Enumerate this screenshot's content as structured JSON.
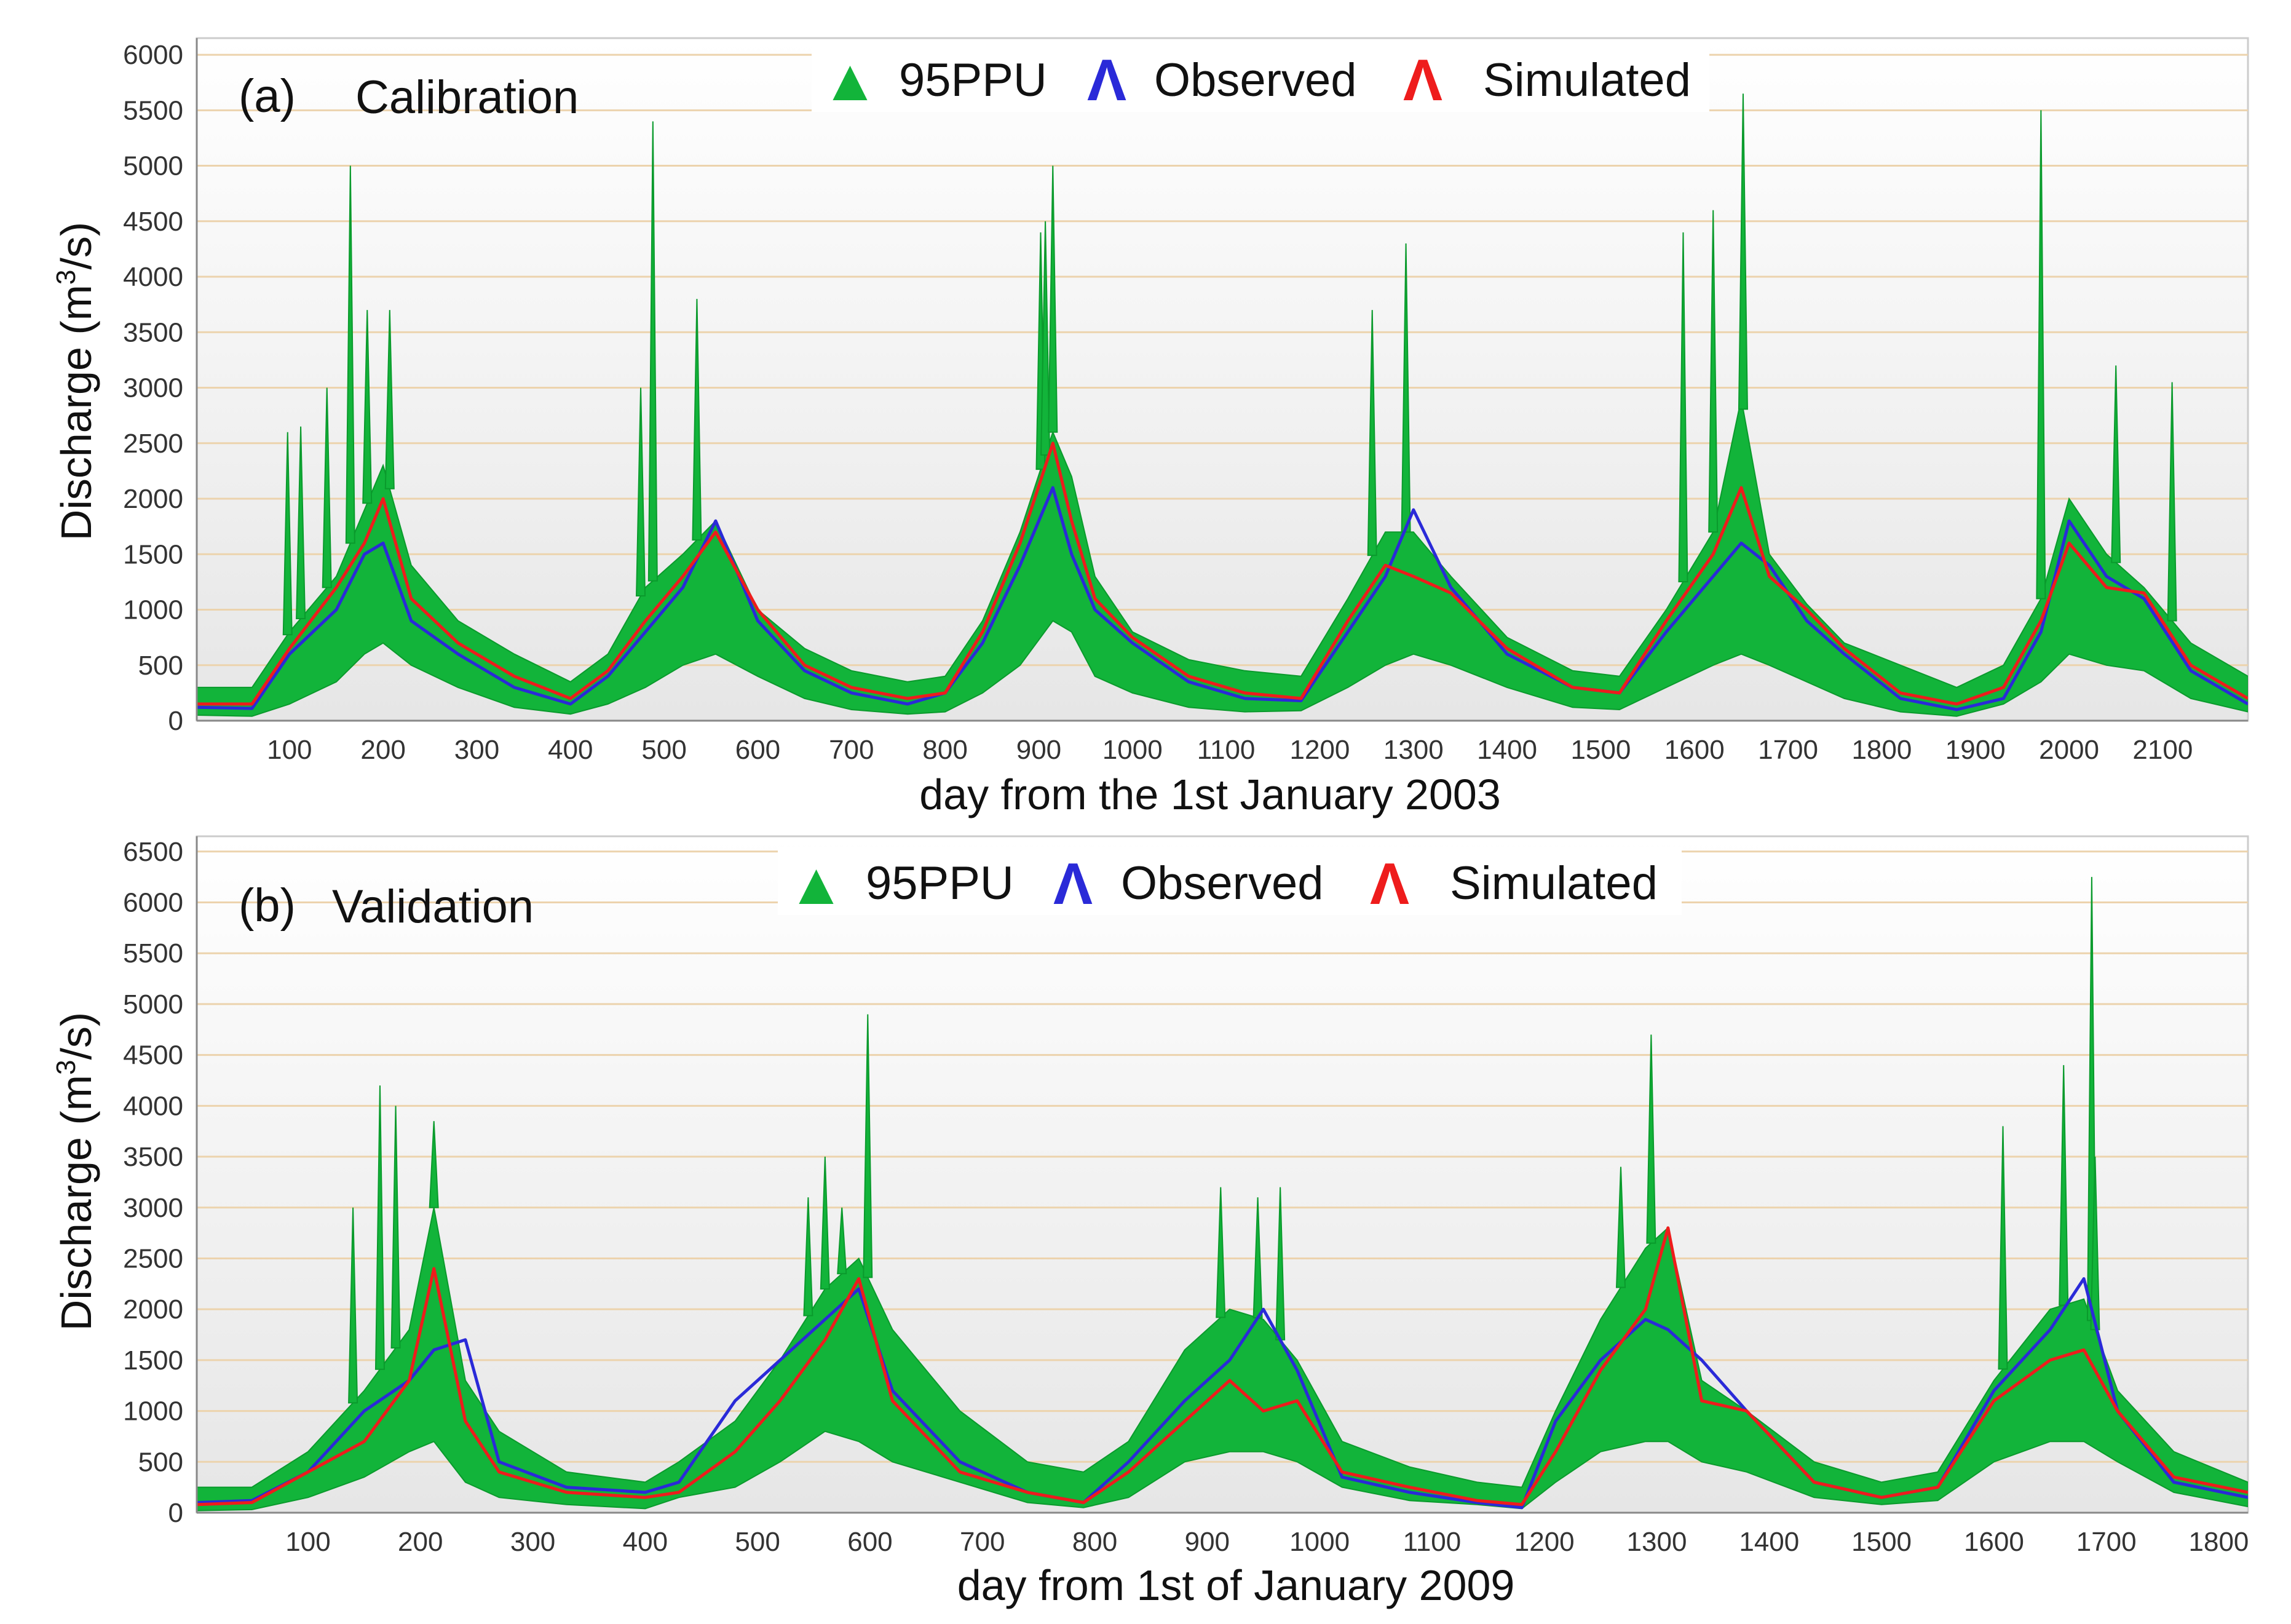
{
  "colors": {
    "ppu_fill": "#12b43a",
    "ppu_edge": "#0a9a2c",
    "observed": "#2a2ad8",
    "simulated": "#ee1c1c",
    "grid": "#ecd3ad",
    "plot_bg_top": "#ffffff",
    "plot_bg_bottom": "#e6e6e6",
    "axis": "#888888"
  },
  "legend_glyphs": {
    "filled": "▲",
    "line": "Λ"
  },
  "chart_data": [
    {
      "id": "calibration",
      "type": "area",
      "panel_label": "(a)",
      "title": "Calibration",
      "xlabel": "day from the 1st January 2003",
      "ylabel_main": "Discharge (m",
      "ylabel_sup": "3",
      "ylabel_end": "/s)",
      "xlim": [
        1,
        2191
      ],
      "ylim": [
        0,
        6150
      ],
      "xticks": [
        100,
        200,
        300,
        400,
        500,
        600,
        700,
        800,
        900,
        1000,
        1100,
        1200,
        1300,
        1400,
        1500,
        1600,
        1700,
        1800,
        1900,
        2000,
        2100
      ],
      "yticks": [
        0,
        500,
        1000,
        1500,
        2000,
        2500,
        3000,
        3500,
        4000,
        4500,
        5000,
        5500,
        6000
      ],
      "ytick_labels": [
        "0",
        "500",
        "1000",
        "1500",
        "2000",
        "2500",
        "3000",
        "3500",
        "4000",
        "4500",
        "5000",
        "5500",
        "6000"
      ],
      "legend": [
        "95PPU",
        "Observed",
        "Simulated"
      ],
      "series": [
        {
          "name": "95PPU upper",
          "x": [
            1,
            60,
            100,
            150,
            180,
            200,
            230,
            280,
            340,
            400,
            440,
            480,
            520,
            555,
            600,
            650,
            700,
            760,
            800,
            840,
            880,
            915,
            935,
            960,
            1000,
            1060,
            1120,
            1180,
            1230,
            1270,
            1300,
            1340,
            1400,
            1470,
            1520,
            1570,
            1620,
            1650,
            1680,
            1720,
            1760,
            1820,
            1880,
            1930,
            1970,
            2000,
            2040,
            2080,
            2130,
            2191
          ],
          "values": [
            300,
            300,
            800,
            1300,
            1900,
            2300,
            1400,
            900,
            600,
            350,
            600,
            1200,
            1500,
            1800,
            1000,
            650,
            450,
            350,
            400,
            900,
            1700,
            2600,
            2200,
            1300,
            800,
            550,
            450,
            400,
            1100,
            1700,
            1700,
            1300,
            750,
            450,
            400,
            1000,
            1700,
            2900,
            1500,
            1050,
            700,
            500,
            300,
            500,
            1100,
            2000,
            1500,
            1200,
            700,
            400
          ]
        },
        {
          "name": "95PPU lower",
          "x": [
            1,
            60,
            100,
            150,
            180,
            200,
            230,
            280,
            340,
            400,
            440,
            480,
            520,
            555,
            600,
            650,
            700,
            760,
            800,
            840,
            880,
            915,
            935,
            960,
            1000,
            1060,
            1120,
            1180,
            1230,
            1270,
            1300,
            1340,
            1400,
            1470,
            1520,
            1570,
            1620,
            1650,
            1680,
            1720,
            1760,
            1820,
            1880,
            1930,
            1970,
            2000,
            2040,
            2080,
            2130,
            2191
          ],
          "values": [
            50,
            40,
            150,
            350,
            600,
            700,
            500,
            300,
            120,
            60,
            150,
            300,
            500,
            600,
            400,
            200,
            100,
            60,
            80,
            250,
            500,
            900,
            800,
            400,
            250,
            120,
            80,
            90,
            300,
            500,
            600,
            500,
            300,
            120,
            100,
            300,
            500,
            600,
            500,
            350,
            200,
            80,
            40,
            150,
            350,
            600,
            500,
            450,
            200,
            80
          ]
        },
        {
          "name": "Observed",
          "x": [
            1,
            60,
            100,
            150,
            180,
            200,
            230,
            280,
            340,
            400,
            440,
            480,
            520,
            555,
            600,
            650,
            700,
            760,
            800,
            840,
            880,
            915,
            935,
            960,
            1000,
            1060,
            1120,
            1180,
            1230,
            1270,
            1300,
            1340,
            1400,
            1470,
            1520,
            1570,
            1620,
            1650,
            1680,
            1720,
            1760,
            1820,
            1880,
            1930,
            1970,
            2000,
            2040,
            2080,
            2130,
            2191
          ],
          "values": [
            120,
            110,
            600,
            1000,
            1500,
            1600,
            900,
            600,
            300,
            150,
            400,
            800,
            1200,
            1800,
            900,
            450,
            250,
            150,
            250,
            700,
            1400,
            2100,
            1500,
            1000,
            700,
            350,
            200,
            180,
            800,
            1300,
            1900,
            1200,
            600,
            300,
            250,
            800,
            1300,
            1600,
            1400,
            900,
            600,
            200,
            100,
            200,
            800,
            1800,
            1300,
            1100,
            450,
            150
          ]
        },
        {
          "name": "Simulated",
          "x": [
            1,
            60,
            100,
            150,
            180,
            200,
            230,
            280,
            340,
            400,
            440,
            480,
            520,
            555,
            600,
            650,
            700,
            760,
            800,
            840,
            880,
            915,
            935,
            960,
            1000,
            1060,
            1120,
            1180,
            1230,
            1270,
            1300,
            1340,
            1400,
            1470,
            1520,
            1570,
            1620,
            1650,
            1680,
            1720,
            1760,
            1820,
            1880,
            1930,
            1970,
            2000,
            2040,
            2080,
            2130,
            2191
          ],
          "values": [
            150,
            150,
            650,
            1200,
            1600,
            2000,
            1100,
            700,
            400,
            200,
            450,
            900,
            1300,
            1700,
            1000,
            500,
            300,
            200,
            250,
            800,
            1600,
            2500,
            1800,
            1100,
            750,
            400,
            250,
            200,
            900,
            1400,
            1300,
            1150,
            650,
            300,
            250,
            900,
            1500,
            2100,
            1300,
            1000,
            650,
            250,
            150,
            300,
            900,
            1600,
            1200,
            1150,
            500,
            200
          ]
        },
        {
          "name": "95PPU spikes",
          "x": [
            98,
            112,
            140,
            165,
            183,
            207,
            475,
            488,
            535,
            902,
            907,
            915,
            1256,
            1292,
            1588,
            1620,
            1652,
            1970,
            2050,
            2110
          ],
          "values": [
            2600,
            2650,
            3000,
            5000,
            3700,
            3700,
            3000,
            5400,
            3800,
            4400,
            4500,
            5000,
            3700,
            4300,
            4400,
            4600,
            5650,
            5500,
            3200,
            3050
          ]
        }
      ]
    },
    {
      "id": "validation",
      "type": "area",
      "panel_label": "(b)",
      "title": "Validation",
      "xlabel": "day from 1st of January 2009",
      "ylabel_main": "Discharge (m",
      "ylabel_sup": "3",
      "ylabel_end": "/s)",
      "xlim": [
        1,
        1826
      ],
      "ylim": [
        0,
        6650
      ],
      "xticks": [
        100,
        200,
        300,
        400,
        500,
        600,
        700,
        800,
        900,
        1000,
        1100,
        1200,
        1300,
        1400,
        1500,
        1600,
        1700,
        1800
      ],
      "yticks": [
        0,
        500,
        1000,
        1500,
        2000,
        2500,
        3000,
        3500,
        4000,
        4500,
        5000,
        5500,
        6000,
        6500
      ],
      "ytick_labels": [
        "0",
        "500",
        "1000",
        "1500",
        "2000",
        "2500",
        "3000",
        "3500",
        "4000",
        "4500",
        "5000",
        "5500",
        "6000",
        "6500"
      ],
      "legend": [
        "95PPU",
        "Observed",
        "Simulated"
      ],
      "series": [
        {
          "name": "95PPU upper",
          "x": [
            1,
            50,
            100,
            150,
            190,
            212,
            240,
            270,
            330,
            400,
            430,
            480,
            520,
            560,
            590,
            620,
            680,
            740,
            790,
            830,
            880,
            920,
            950,
            980,
            1020,
            1080,
            1140,
            1180,
            1210,
            1250,
            1290,
            1310,
            1340,
            1380,
            1440,
            1500,
            1550,
            1600,
            1650,
            1680,
            1710,
            1760,
            1826
          ],
          "values": [
            250,
            250,
            600,
            1200,
            1800,
            3000,
            1300,
            800,
            400,
            300,
            500,
            900,
            1500,
            2200,
            2500,
            1800,
            1000,
            500,
            400,
            700,
            1600,
            2000,
            1900,
            1500,
            700,
            450,
            300,
            250,
            1000,
            1900,
            2600,
            2800,
            1300,
            1000,
            500,
            300,
            400,
            1300,
            2000,
            2100,
            1200,
            600,
            300
          ]
        },
        {
          "name": "95PPU lower",
          "x": [
            1,
            50,
            100,
            150,
            190,
            212,
            240,
            270,
            330,
            400,
            430,
            480,
            520,
            560,
            590,
            620,
            680,
            740,
            790,
            830,
            880,
            920,
            950,
            980,
            1020,
            1080,
            1140,
            1180,
            1210,
            1250,
            1290,
            1310,
            1340,
            1380,
            1440,
            1500,
            1550,
            1600,
            1650,
            1680,
            1710,
            1760,
            1826
          ],
          "values": [
            20,
            30,
            150,
            350,
            600,
            700,
            300,
            150,
            80,
            40,
            150,
            250,
            500,
            800,
            700,
            500,
            300,
            100,
            50,
            150,
            500,
            600,
            600,
            500,
            250,
            120,
            80,
            40,
            300,
            600,
            700,
            700,
            500,
            400,
            150,
            80,
            120,
            500,
            700,
            700,
            500,
            200,
            60
          ]
        },
        {
          "name": "Observed",
          "x": [
            1,
            50,
            100,
            150,
            190,
            212,
            240,
            270,
            330,
            400,
            430,
            480,
            520,
            560,
            590,
            620,
            680,
            740,
            790,
            830,
            880,
            920,
            950,
            980,
            1020,
            1080,
            1140,
            1180,
            1210,
            1250,
            1290,
            1310,
            1340,
            1380,
            1440,
            1500,
            1550,
            1600,
            1650,
            1680,
            1710,
            1760,
            1826
          ],
          "values": [
            100,
            120,
            400,
            1000,
            1300,
            1600,
            1700,
            500,
            250,
            200,
            300,
            1100,
            1500,
            1900,
            2200,
            1200,
            500,
            200,
            100,
            500,
            1100,
            1500,
            2000,
            1400,
            350,
            200,
            100,
            50,
            900,
            1500,
            1900,
            1800,
            1500,
            1000,
            300,
            150,
            250,
            1200,
            1800,
            2300,
            1000,
            300,
            150
          ]
        },
        {
          "name": "Simulated",
          "x": [
            1,
            50,
            100,
            150,
            190,
            212,
            240,
            270,
            330,
            400,
            430,
            480,
            520,
            560,
            590,
            620,
            680,
            740,
            790,
            830,
            880,
            920,
            950,
            980,
            1020,
            1080,
            1140,
            1180,
            1210,
            1250,
            1290,
            1310,
            1340,
            1380,
            1440,
            1500,
            1550,
            1600,
            1650,
            1680,
            1710,
            1760,
            1826
          ],
          "values": [
            80,
            100,
            400,
            700,
            1300,
            2400,
            900,
            400,
            200,
            150,
            200,
            600,
            1100,
            1700,
            2300,
            1100,
            400,
            200,
            100,
            400,
            900,
            1300,
            1000,
            1100,
            400,
            250,
            120,
            80,
            600,
            1400,
            2000,
            2800,
            1100,
            1000,
            300,
            150,
            250,
            1100,
            1500,
            1600,
            1000,
            350,
            200
          ]
        },
        {
          "name": "95PPU spikes",
          "x": [
            140,
            164,
            178,
            212,
            545,
            560,
            575,
            598,
            912,
            945,
            965,
            1268,
            1295,
            1608,
            1662,
            1687,
            1690
          ],
          "values": [
            3000,
            4200,
            4000,
            3850,
            3100,
            3500,
            3000,
            4900,
            3200,
            3100,
            3200,
            3400,
            4700,
            3800,
            4400,
            6250,
            3500
          ]
        }
      ]
    }
  ]
}
